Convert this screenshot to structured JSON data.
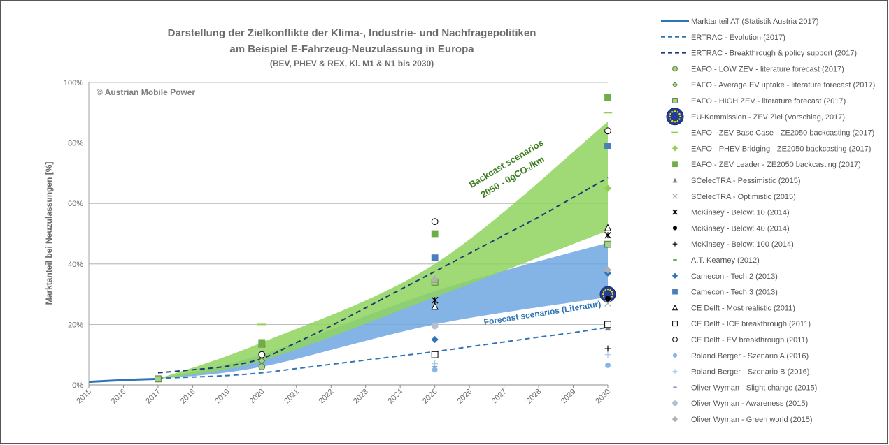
{
  "chart_data": {
    "type": "line",
    "title": "Darstellung der Zielkonflikte der Klima-, Industrie- und Nachfragepolitiken",
    "subtitle": "am Beispiel E-Fahrzeug-Neuzulassung in Europa",
    "subtitle2": "(BEV, PHEV & REX, Kl. M1 & N1 bis 2030)",
    "copyright": "© Austrian Mobile Power",
    "ylabel": "Marktanteil bei Neuzulassungen [%]",
    "xlabel": "",
    "xlim": [
      2015,
      2030
    ],
    "ylim": [
      0,
      100
    ],
    "x_ticks": [
      "2015",
      "2016",
      "2017",
      "2018",
      "2019",
      "2020",
      "2021",
      "2022",
      "2023",
      "2024",
      "2025",
      "2026",
      "2027",
      "2028",
      "2029",
      "2030"
    ],
    "y_ticks": [
      "0%",
      "20%",
      "40%",
      "60%",
      "80%",
      "100%"
    ],
    "grid": true,
    "legend_position": "right",
    "annotations": {
      "backcast_line1": "Backcast scenarios",
      "backcast_line2": "2050 - 0gCO₂/km",
      "forecast": "Forecast scenarios (Literatur)"
    },
    "bands": [
      {
        "name_ref": "forecast",
        "color": "#6ea6e0",
        "lower": [
          [
            2017,
            2
          ],
          [
            2020,
            6
          ],
          [
            2025,
            20
          ],
          [
            2030,
            29
          ]
        ],
        "upper": [
          [
            2017,
            2
          ],
          [
            2020,
            10
          ],
          [
            2025,
            31
          ],
          [
            2030,
            47
          ]
        ]
      },
      {
        "name_ref": "backcast",
        "color": "#8fd45f",
        "lower": [
          [
            2017,
            2
          ],
          [
            2020,
            8
          ],
          [
            2025,
            29
          ],
          [
            2030,
            51
          ]
        ],
        "upper": [
          [
            2017,
            2
          ],
          [
            2020,
            14
          ],
          [
            2025,
            40
          ],
          [
            2030,
            87
          ]
        ]
      }
    ],
    "series": [
      {
        "name": "Marktanteil AT (Statistik Austria 2017)",
        "marker": "line-solid",
        "color": "#2e75b6",
        "points": [
          [
            2015,
            1
          ],
          [
            2016,
            1.6
          ],
          [
            2017,
            2
          ]
        ]
      },
      {
        "name": "ERTRAC - Evolution (2017)",
        "marker": "line-dash",
        "color": "#2e75b6",
        "points": [
          [
            2017,
            2.2
          ],
          [
            2018,
            2.6
          ],
          [
            2019,
            3.1
          ],
          [
            2020,
            4
          ],
          [
            2021,
            5.4
          ],
          [
            2022,
            6.8
          ],
          [
            2023,
            8.2
          ],
          [
            2024,
            9.6
          ],
          [
            2025,
            11
          ],
          [
            2026,
            12.6
          ],
          [
            2027,
            14.2
          ],
          [
            2028,
            15.8
          ],
          [
            2029,
            17.3
          ],
          [
            2030,
            19
          ]
        ]
      },
      {
        "name": "ERTRAC - Breakthrough & policy support (2017)",
        "marker": "line-dash-dark",
        "color": "#1f3b73",
        "points": [
          [
            2017,
            4
          ],
          [
            2018,
            5
          ],
          [
            2019,
            6.2
          ],
          [
            2020,
            8.7
          ],
          [
            2021,
            14
          ],
          [
            2022,
            19.5
          ],
          [
            2023,
            25.5
          ],
          [
            2024,
            31.5
          ],
          [
            2025,
            37.5
          ],
          [
            2026,
            43.5
          ],
          [
            2027,
            49.5
          ],
          [
            2028,
            55.5
          ],
          [
            2029,
            62
          ],
          [
            2030,
            68.5
          ]
        ]
      },
      {
        "name": "EAFO - LOW ZEV - literature forecast (2017)",
        "marker": "circle",
        "color": "#a9d18e",
        "stroke": "#548235",
        "points": [
          [
            2020,
            6
          ]
        ]
      },
      {
        "name": "EAFO - Average EV uptake - literature forecast (2017)",
        "marker": "diamond",
        "color": "#a9d18e",
        "stroke": "#548235",
        "points": [
          [
            2020,
            8
          ]
        ]
      },
      {
        "name": "EAFO - HIGH ZEV - literature forecast (2017)",
        "marker": "square",
        "color": "#a9d18e",
        "stroke": "#548235",
        "points": [
          [
            2017,
            2
          ],
          [
            2020,
            13.5
          ],
          [
            2025,
            34
          ],
          [
            2030,
            46.5
          ]
        ]
      },
      {
        "name": "EU-Kommission - ZEV Ziel (Vorschlag, 2017)",
        "marker": "eu",
        "color": "#1f3d99",
        "points": [
          [
            2030,
            30
          ]
        ]
      },
      {
        "name": "EAFO - ZEV Base Case - ZE2050 backcasting (2017)",
        "marker": "dash",
        "color": "#92d050",
        "points": [
          [
            2020,
            20
          ],
          [
            2030,
            90
          ]
        ]
      },
      {
        "name": "EAFO - PHEV Bridging - ZE2050 backcasting (2017)",
        "marker": "diamond",
        "color": "#92d050",
        "points": [
          [
            2030,
            65
          ]
        ]
      },
      {
        "name": "EAFO - ZEV Leader - ZE2050 backcasting (2017)",
        "marker": "square",
        "color": "#70ad47",
        "points": [
          [
            2020,
            14
          ],
          [
            2025,
            50
          ],
          [
            2030,
            95
          ]
        ]
      },
      {
        "name": "SCelecTRA - Pessimistic (2015)",
        "marker": "triangle",
        "color": "#7f7f7f",
        "points": [
          [
            2030,
            19
          ]
        ]
      },
      {
        "name": "SCelecTRA - Optimistic (2015)",
        "marker": "x",
        "color": "#a6a6a6",
        "points": [
          [
            2030,
            27
          ]
        ]
      },
      {
        "name": "McKinsey - Below: 10 (2014)",
        "marker": "asterisk",
        "color": "#000",
        "points": [
          [
            2025,
            28
          ],
          [
            2030,
            49.5
          ]
        ]
      },
      {
        "name": "McKinsey - Below: 40 (2014)",
        "marker": "dot",
        "color": "#000",
        "points": [
          [
            2030,
            28.5
          ]
        ]
      },
      {
        "name": "McKinsey - Below: 100 (2014)",
        "marker": "plus",
        "color": "#000",
        "points": [
          [
            2030,
            12
          ]
        ]
      },
      {
        "name": "A.T. Kearney (2012)",
        "marker": "smalldash",
        "color": "#70ad47",
        "points": [
          [
            2025,
            34
          ]
        ]
      },
      {
        "name": "Camecon - Tech 2 (2013)",
        "marker": "diamond",
        "color": "#2e75b6",
        "points": [
          [
            2025,
            15
          ],
          [
            2030,
            37
          ]
        ]
      },
      {
        "name": "Camecon - Tech 3 (2013)",
        "marker": "square",
        "color": "#4a7ebb",
        "points": [
          [
            2025,
            42
          ],
          [
            2030,
            79
          ]
        ]
      },
      {
        "name": "CE Delft - Most realistic (2011)",
        "marker": "triangle-open",
        "color": "#000",
        "points": [
          [
            2025,
            26
          ],
          [
            2030,
            52
          ]
        ]
      },
      {
        "name": "CE Delft - ICE breakthrough (2011)",
        "marker": "square-open",
        "color": "#000",
        "points": [
          [
            2025,
            10
          ],
          [
            2030,
            20
          ]
        ]
      },
      {
        "name": "CE Delft - EV breakthrough (2011)",
        "marker": "circle-open",
        "color": "#000",
        "points": [
          [
            2020,
            10
          ],
          [
            2025,
            54
          ],
          [
            2030,
            84
          ]
        ]
      },
      {
        "name": "Roland Berger - Szenario A (2016)",
        "marker": "dot",
        "color": "#8ab6e6",
        "points": [
          [
            2025,
            5
          ],
          [
            2030,
            6.5
          ]
        ]
      },
      {
        "name": "Roland Berger - Szenario B (2016)",
        "marker": "plus",
        "color": "#a9c6e8",
        "points": [
          [
            2025,
            7
          ],
          [
            2030,
            10
          ]
        ]
      },
      {
        "name": "Oliver Wyman - Slight change (2015)",
        "marker": "smalldash",
        "color": "#7f9fc0",
        "points": [
          [
            2025,
            6
          ]
        ]
      },
      {
        "name": "Oliver Wyman - Awareness (2015)",
        "marker": "circle",
        "color": "#b4c0d0",
        "points": [
          [
            2025,
            19.5
          ]
        ]
      },
      {
        "name": "Oliver Wyman - Green world (2015)",
        "marker": "diamond",
        "color": "#b0b0b0",
        "points": [
          [
            2025,
            35
          ],
          [
            2030,
            38
          ]
        ]
      }
    ]
  }
}
